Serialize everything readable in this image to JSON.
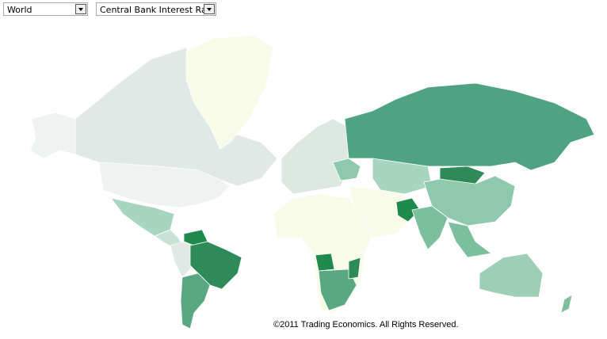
{
  "controls": {
    "region": "World",
    "indicator": "Central Bank Interest Rate"
  },
  "footer": {
    "copyright": "©2011 Trading Economics. All Rights Reserved."
  }
}
